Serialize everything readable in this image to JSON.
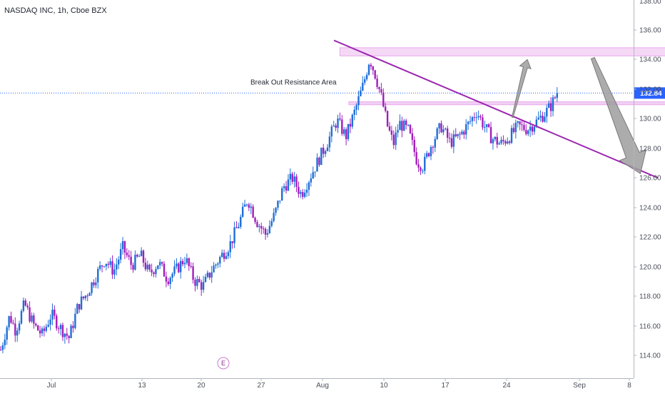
{
  "chart_data": {
    "type": "candlestick",
    "title": "NASDAQ INC, 1h, Cboe BZX",
    "x_ticks": [
      "Jul",
      "13",
      "20",
      "27",
      "Aug",
      "10",
      "17",
      "24",
      "Sep",
      "8"
    ],
    "y_ticks": [
      "136.00",
      "134.00",
      "132.00",
      "130.00",
      "128.00",
      "126.00",
      "124.00",
      "122.00",
      "120.00",
      "118.00",
      "116.00",
      "114.00"
    ],
    "y_ticks_partial": [
      "138.00"
    ],
    "ylim": [
      113.0,
      138.2
    ],
    "last_price": 132.84,
    "last_price_label": "132.84",
    "price_path": [
      [
        0,
        115.5
      ],
      [
        3,
        117.8
      ],
      [
        5,
        116.8
      ],
      [
        8,
        118.6
      ],
      [
        11,
        117.2
      ],
      [
        14,
        116.5
      ],
      [
        17,
        117.9
      ],
      [
        20,
        117.0
      ],
      [
        23,
        116.3
      ],
      [
        26,
        118.5
      ],
      [
        29,
        119.3
      ],
      [
        32,
        120.5
      ],
      [
        35,
        121.6
      ],
      [
        38,
        120.8
      ],
      [
        41,
        122.4
      ],
      [
        44,
        121.2
      ],
      [
        47,
        121.9
      ],
      [
        50,
        120.6
      ],
      [
        53,
        121.4
      ],
      [
        56,
        120.3
      ],
      [
        59,
        120.9
      ],
      [
        62,
        121.7
      ],
      [
        65,
        120.2
      ],
      [
        68,
        119.8
      ],
      [
        71,
        120.9
      ],
      [
        74,
        121.8
      ],
      [
        77,
        122.6
      ],
      [
        80,
        124.0
      ],
      [
        83,
        125.7
      ],
      [
        86,
        124.2
      ],
      [
        89,
        123.3
      ],
      [
        92,
        124.6
      ],
      [
        95,
        126.5
      ],
      [
        98,
        127.1
      ],
      [
        101,
        126.0
      ],
      [
        104,
        127.2
      ],
      [
        107,
        128.4
      ],
      [
        110,
        129.6
      ],
      [
        113,
        131.0
      ],
      [
        116,
        129.9
      ],
      [
        119,
        131.6
      ],
      [
        122,
        133.5
      ],
      [
        124,
        135.2
      ],
      [
        126,
        134.0
      ],
      [
        128,
        132.5
      ],
      [
        130,
        130.6
      ],
      [
        132,
        129.4
      ],
      [
        134,
        130.8
      ],
      [
        137,
        130.3
      ],
      [
        140,
        128.2
      ],
      [
        142,
        127.9
      ],
      [
        145,
        129.5
      ],
      [
        148,
        130.6
      ],
      [
        151,
        129.5
      ],
      [
        154,
        129.9
      ],
      [
        157,
        130.7
      ],
      [
        160,
        131.6
      ],
      [
        162,
        130.8
      ],
      [
        165,
        129.8
      ],
      [
        168,
        129.4
      ],
      [
        171,
        129.9
      ],
      [
        174,
        130.6
      ],
      [
        177,
        130.4
      ],
      [
        180,
        130.9
      ],
      [
        183,
        131.5
      ],
      [
        185,
        132.0
      ],
      [
        187,
        132.84
      ]
    ],
    "annotations": {
      "trendline": {
        "from": [
          112,
          136.4
        ],
        "to": [
          221,
          127.1
        ],
        "color": "#9c27b0"
      },
      "resistance_zone": {
        "x": [
          114,
          268
        ],
        "y": [
          135.35,
          135.9
        ],
        "color": "#e8a8ec"
      },
      "breakout_zone": {
        "x": [
          117,
          229
        ],
        "y": [
          132.05,
          132.25
        ],
        "color": "#e8a8ec",
        "label": "Break Out Resistance Area"
      },
      "arrow_up": {
        "from": [
          172,
          131.2
        ],
        "to": [
          177,
          135.1
        ],
        "color": "#9e9e9e"
      },
      "arrow_down": {
        "from": [
          199,
          135.2
        ],
        "to": [
          215,
          127.4
        ],
        "color": "#9e9e9e"
      },
      "earnings_marker": {
        "x": 108,
        "label": "E"
      }
    },
    "colors": {
      "up": "#1e6ed6",
      "down": "#a21dbb",
      "price_line": "#2962ff",
      "price_tag": "#2962ff"
    },
    "grid": false,
    "legend": "none"
  }
}
